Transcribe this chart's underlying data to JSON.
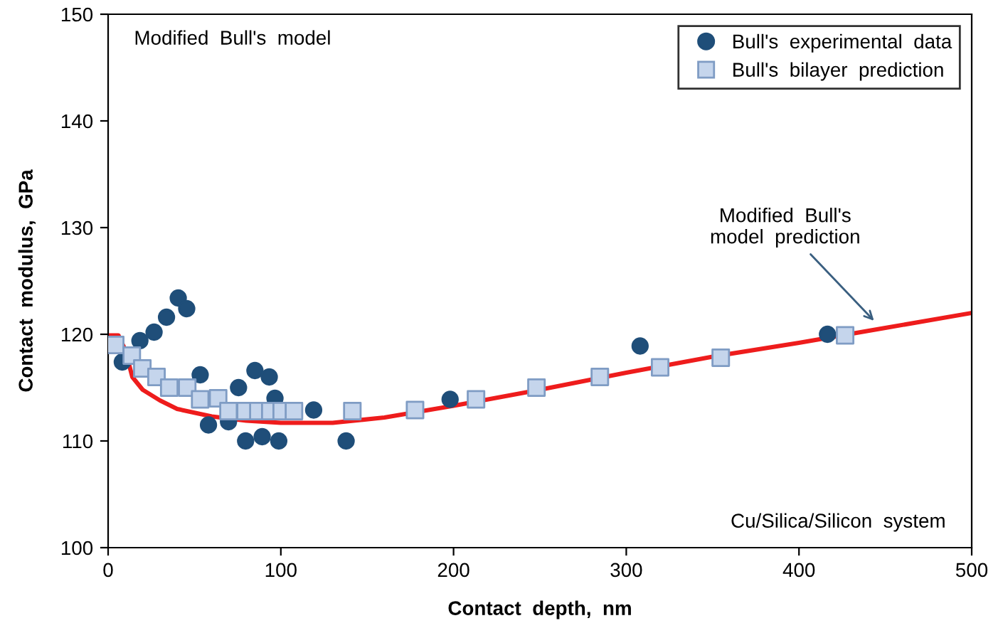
{
  "chart_data": {
    "type": "scatter",
    "xlabel": "Contact  depth,  nm",
    "ylabel": "Contact  modulus,  GPa",
    "xlim": [
      0,
      500
    ],
    "ylim": [
      100,
      150
    ],
    "xticks": [
      0,
      100,
      200,
      300,
      400,
      500
    ],
    "yticks": [
      100,
      110,
      120,
      130,
      140,
      150
    ],
    "grid": false,
    "legend": "top right",
    "series": [
      {
        "name": "Bull's  experimental  data",
        "marker": "circle",
        "color": "#1f4e79",
        "x": [
          8.2,
          18.4,
          26.6,
          33.8,
          40.6,
          45.5,
          53.3,
          58.1,
          69.7,
          75.5,
          79.6,
          85,
          89.2,
          93.3,
          96.6,
          98.8,
          119,
          137.8,
          198,
          308,
          416.5
        ],
        "values": [
          117.4,
          119.4,
          120.2,
          121.6,
          123.4,
          122.4,
          116.2,
          111.5,
          111.8,
          115,
          110,
          116.6,
          110.4,
          116,
          114,
          110,
          112.9,
          110,
          113.9,
          118.9,
          120
        ]
      },
      {
        "name": "Bull's  bilayer  prediction",
        "marker": "square",
        "color": "#c5d5ec",
        "x": [
          4.1,
          13.7,
          19.8,
          28,
          35.4,
          45.8,
          53.3,
          63.7,
          69.7,
          79.6,
          87,
          93.9,
          100.5,
          107.6,
          141.4,
          177.7,
          213,
          248,
          284.7,
          319.6,
          354.7,
          426.7
        ],
        "values": [
          119,
          118,
          116.8,
          116,
          115,
          115,
          113.9,
          114,
          112.8,
          112.8,
          112.8,
          112.8,
          112.8,
          112.8,
          112.8,
          112.9,
          113.9,
          115,
          116,
          116.9,
          117.8,
          119.9
        ]
      },
      {
        "type": "line",
        "marker": "none",
        "line_style": "solid",
        "color": "#ee1c1c",
        "x": [
          0,
          6,
          10,
          14,
          20,
          30,
          40,
          60,
          80,
          100,
          130,
          160,
          200,
          250,
          300,
          350,
          400,
          450,
          500
        ],
        "values": [
          119.9,
          119.9,
          118.5,
          116,
          114.8,
          113.8,
          113,
          112.3,
          111.9,
          111.7,
          111.7,
          112.2,
          113.3,
          114.8,
          116.4,
          117.9,
          119.2,
          120.6,
          122
        ]
      }
    ],
    "annotations": [
      "Modified  Bull's  model",
      {
        "text": "Modified  Bull's\nmodel  prediction",
        "x": 445,
        "y": 121
      },
      "Cu/Silica/Silicon  system"
    ]
  }
}
